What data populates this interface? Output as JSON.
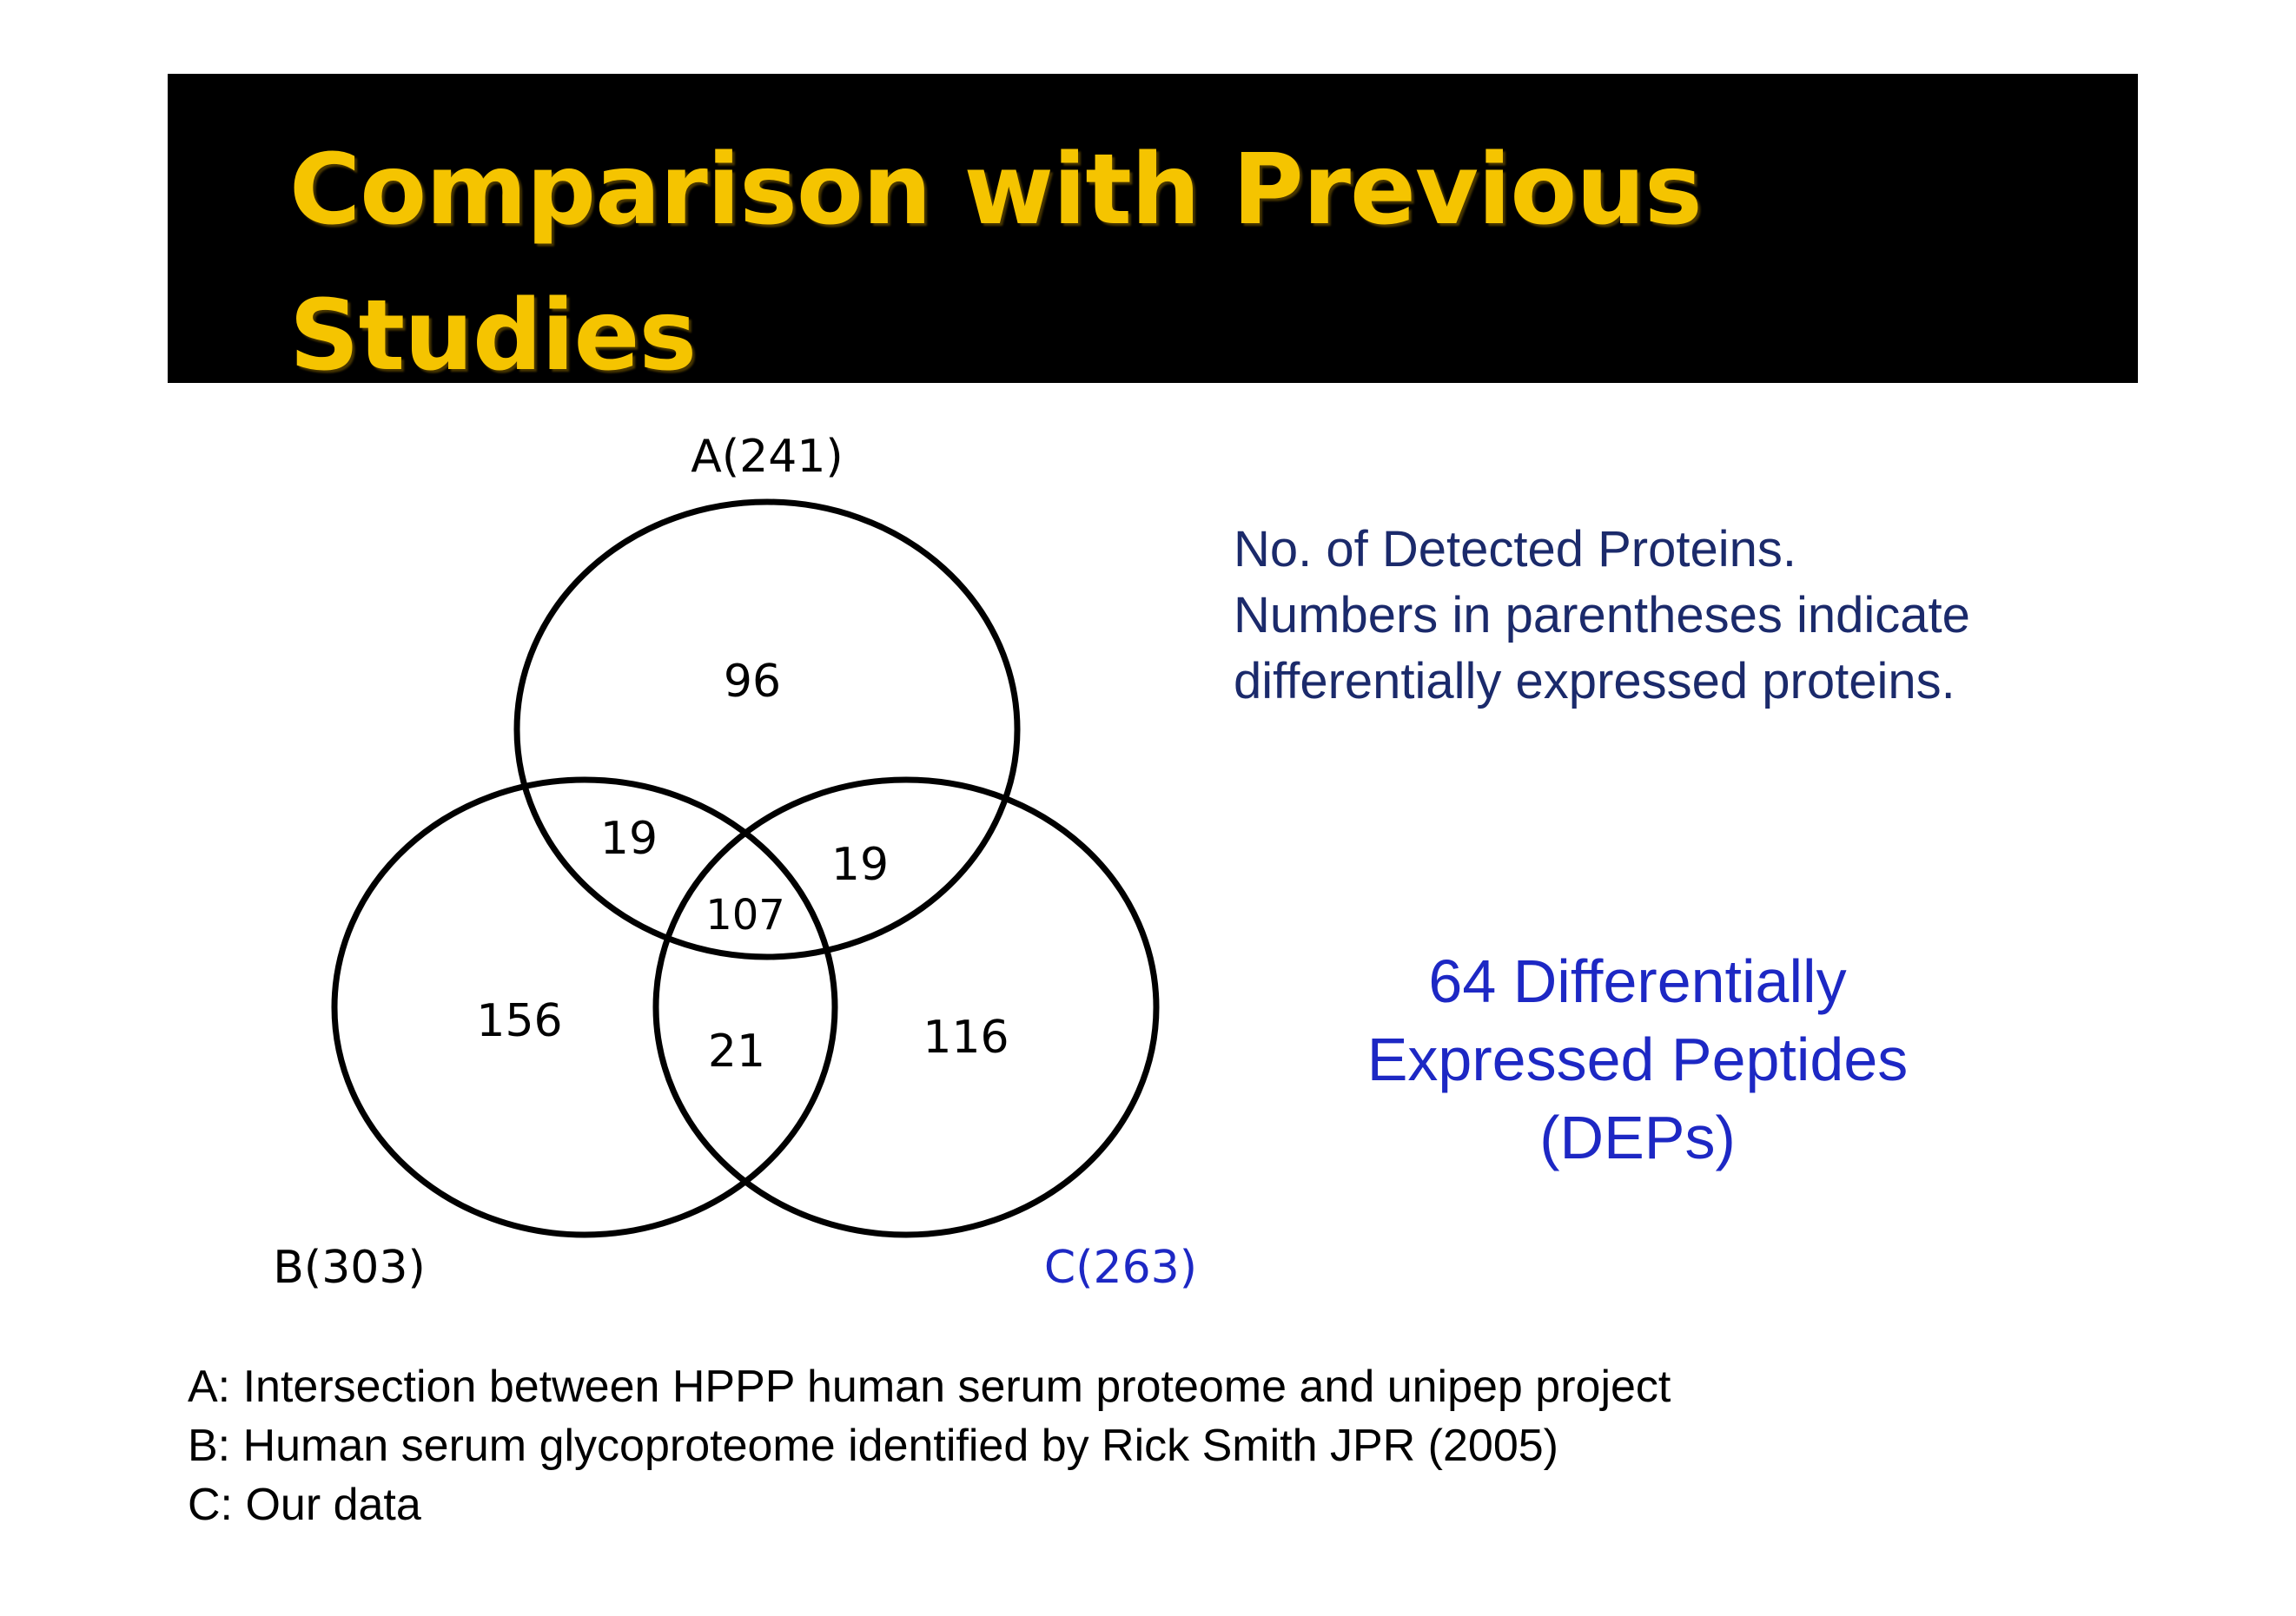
{
  "title": {
    "line1": "Comparison with Previous",
    "line2": "Studies",
    "color": "#f5c400"
  },
  "venn": {
    "sets": [
      {
        "id": "A",
        "label": "A(241)",
        "color": "#000000"
      },
      {
        "id": "B",
        "label": "B(303)",
        "color": "#000000"
      },
      {
        "id": "C",
        "label": "C(263)",
        "color": "#1d28c4"
      }
    ],
    "regions": {
      "A_only": "96",
      "A_B": "19",
      "A_C": "19",
      "A_B_C": "107",
      "B_only": "156",
      "B_C": "21",
      "C_only": "116"
    }
  },
  "note": {
    "line1": "No. of Detected Proteins.",
    "line2": "Numbers in parentheses indicate",
    "line3": "differentially expressed proteins."
  },
  "deps": {
    "line1": "64 Differentially",
    "line2": "Expressed Peptides",
    "line3": "(DEPs)"
  },
  "legend": {
    "a": "A: Intersection between HPPP human serum proteome and unipep project",
    "b": "B: Human serum glycoproteome identified by Rick Smith JPR (2005)",
    "c": "C: Our data"
  }
}
